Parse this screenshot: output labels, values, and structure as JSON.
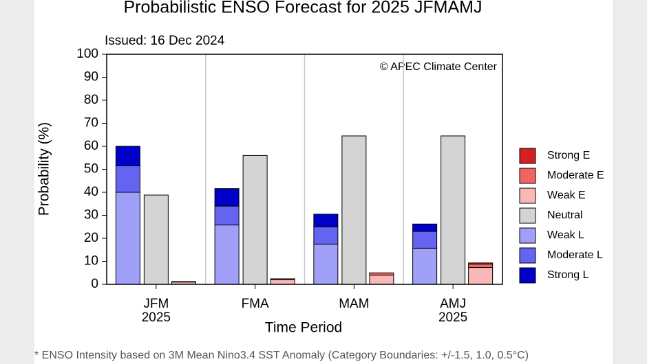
{
  "chart_data": {
    "type": "stacked-bar",
    "title": "Probabilistic ENSO Forecast for 2025 JFMAMJ",
    "subtitle": "Issued: 16 Dec 2024",
    "annotation": "© APEC Climate Center",
    "footnote": "* ENSO Intensity based on 3M Mean Nino3.4 SST Anomaly (Category Boundaries: +/-1.5, 1.0, 0.5°C)",
    "xlabel": "Time Period",
    "ylabel": "Probability (%)",
    "categories": [
      "JFM",
      "FMA",
      "MAM",
      "AMJ"
    ],
    "category_sublabels": [
      "2025",
      null,
      null,
      "2025"
    ],
    "ylim": [
      0,
      100
    ],
    "yticks": [
      0,
      10,
      20,
      30,
      40,
      50,
      60,
      70,
      80,
      90,
      100
    ],
    "series": [
      {
        "name": "Weak L",
        "color": "#a0a0f8",
        "stack": 0,
        "values": [
          40,
          25.8,
          17.5,
          15.7
        ]
      },
      {
        "name": "Moderate L",
        "color": "#6464f0",
        "stack": 0,
        "values": [
          11.5,
          8.2,
          7.5,
          7.3
        ]
      },
      {
        "name": "Strong L",
        "color": "#0000c8",
        "stack": 0,
        "values": [
          8.5,
          7.6,
          5.5,
          3.2
        ]
      },
      {
        "name": "Neutral",
        "color": "#d4d4d4",
        "stack": 1,
        "values": [
          38.8,
          56,
          64.5,
          64.5
        ]
      },
      {
        "name": "Weak E",
        "color": "#f8b8b8",
        "stack": 2,
        "values": [
          1,
          2,
          4,
          7.3
        ]
      },
      {
        "name": "Moderate E",
        "color": "#f06464",
        "stack": 2,
        "values": [
          0.2,
          0.4,
          1,
          1.5
        ]
      },
      {
        "name": "Strong E",
        "color": "#d42020",
        "stack": 2,
        "values": [
          0,
          0,
          0,
          0.5
        ]
      }
    ],
    "legend_order": [
      6,
      5,
      4,
      3,
      0,
      1,
      2
    ]
  }
}
